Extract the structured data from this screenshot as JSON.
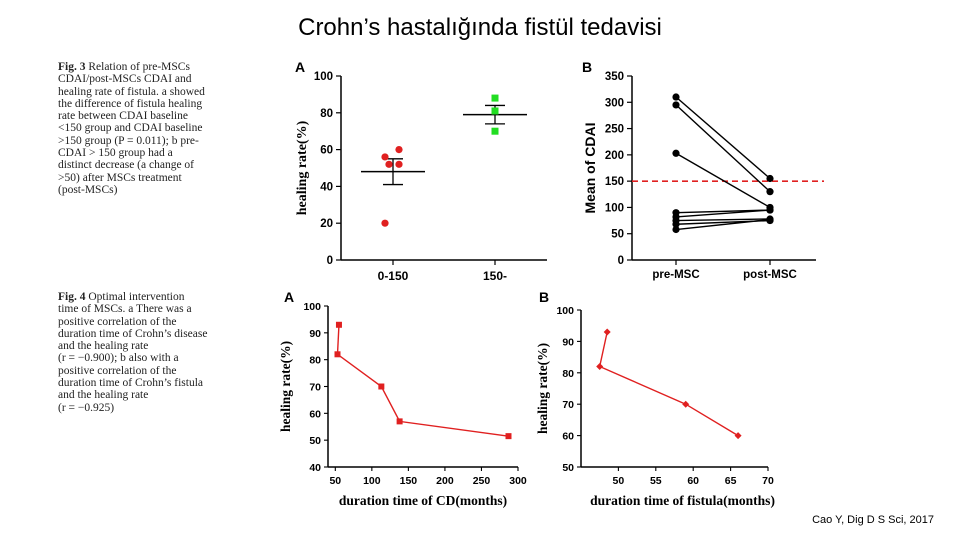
{
  "slide": {
    "title": "Crohn’s hastalığında fistül tedavisi",
    "credit": "Cao Y, Dig D S Sci, 2017"
  },
  "fig3_caption": {
    "label": "Fig. 3",
    "lines": [
      "Relation of pre-MSCs",
      "CDAI/post-MSCs CDAI and",
      "healing rate of fistula. a showed",
      "the difference of fistula healing",
      "rate between CDAI baseline",
      "<150 group and CDAI baseline",
      ">150 group (P = 0.011); b pre-",
      "CDAI > 150 group had a",
      "distinct decrease (a change of",
      ">50) after MSCs treatment",
      "(post-MSCs)"
    ]
  },
  "fig4_caption": {
    "label": "Fig. 4",
    "lines": [
      "Optimal intervention",
      "time of MSCs. a There was a",
      "positive correlation of the",
      "duration time of Crohn’s disease",
      "and the healing rate",
      "(r = −0.900); b also with a",
      "positive correlation of the",
      "duration time of Crohn’s fistula",
      "and the healing rate",
      "(r = −0.925)"
    ]
  },
  "chart_data": [
    {
      "id": "fig3A",
      "panel": "A",
      "type": "scatter",
      "ylabel": "healing rate(%)",
      "ylim": [
        0,
        100
      ],
      "yticks": [
        0,
        20,
        40,
        60,
        80,
        100
      ],
      "categories": [
        "0-150",
        "150-"
      ],
      "groups": [
        {
          "category": "0-150",
          "color": "#e02020",
          "points": [
            56,
            60,
            52,
            52,
            20
          ],
          "mean": 48,
          "err": [
            41,
            55
          ]
        },
        {
          "category": "150-",
          "color": "#22dd22",
          "points": [
            88,
            81,
            70
          ],
          "mean": 79,
          "err": [
            74,
            84
          ]
        }
      ]
    },
    {
      "id": "fig3B",
      "panel": "B",
      "type": "line",
      "ylabel": "Mean of CDAI",
      "ylim": [
        0,
        350
      ],
      "yticks": [
        0,
        50,
        100,
        150,
        200,
        250,
        300,
        350
      ],
      "categories": [
        "pre-MSC",
        "post-MSC"
      ],
      "reference_line": 150,
      "series": [
        {
          "values": [
            310,
            155
          ]
        },
        {
          "values": [
            295,
            130
          ]
        },
        {
          "values": [
            203,
            100
          ]
        },
        {
          "values": [
            90,
            95
          ]
        },
        {
          "values": [
            82,
            95
          ]
        },
        {
          "values": [
            75,
            78
          ]
        },
        {
          "values": [
            68,
            75
          ]
        },
        {
          "values": [
            58,
            77
          ]
        }
      ]
    },
    {
      "id": "fig4A",
      "panel": "A",
      "type": "line",
      "xlabel": "duration time of CD(months)",
      "ylabel": "healing rate(%)",
      "xlim": [
        40,
        300
      ],
      "ylim": [
        40,
        100
      ],
      "xticks": [
        50,
        100,
        150,
        200,
        250,
        300
      ],
      "yticks": [
        40,
        50,
        60,
        70,
        80,
        90,
        100
      ],
      "x": [
        55,
        53,
        113,
        138,
        287
      ],
      "y": [
        93,
        82,
        70,
        57,
        51.5
      ]
    },
    {
      "id": "fig4B",
      "panel": "B",
      "type": "line",
      "xlabel": "duration time of  fistula(months)",
      "ylabel": "healing rate(%)",
      "xlim": [
        45,
        70
      ],
      "ylim": [
        50,
        100
      ],
      "xticks": [
        50,
        55,
        60,
        65,
        70
      ],
      "yticks": [
        50,
        60,
        70,
        80,
        90,
        100
      ],
      "x": [
        48.5,
        47.5,
        59,
        66
      ],
      "y": [
        93,
        82,
        70,
        60
      ]
    }
  ]
}
